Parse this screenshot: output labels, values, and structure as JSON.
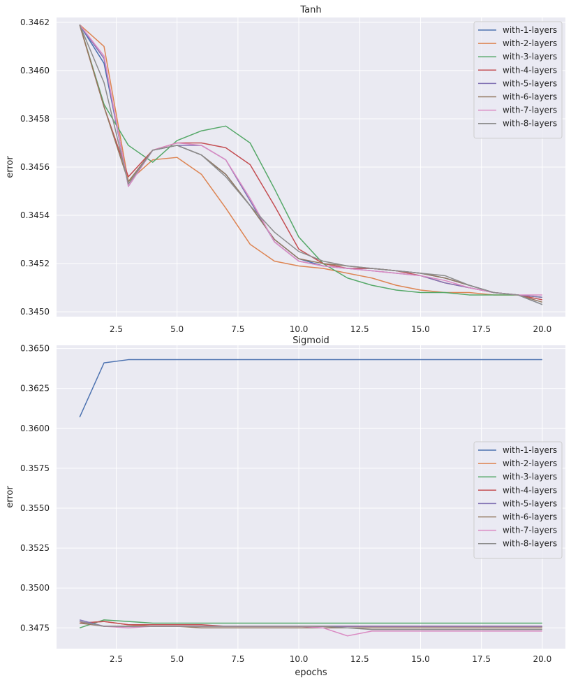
{
  "chart_data": [
    {
      "type": "line",
      "title": "Tanh",
      "xlabel": "",
      "ylabel": "error",
      "xlim": [
        0.05,
        20.95
      ],
      "ylim": [
        0.34498,
        0.34622
      ],
      "xticks": [
        2.5,
        5.0,
        7.5,
        10.0,
        12.5,
        15.0,
        17.5,
        20.0
      ],
      "xtick_labels": [
        "2.5",
        "5.0",
        "7.5",
        "10.0",
        "12.5",
        "15.0",
        "17.5",
        "20.0"
      ],
      "yticks": [
        0.345,
        0.3452,
        0.3454,
        0.3456,
        0.3458,
        0.346,
        0.3462
      ],
      "ytick_labels": [
        "0.3450",
        "0.3452",
        "0.3454",
        "0.3456",
        "0.3458",
        "0.3460",
        "0.3462"
      ],
      "grid": true,
      "legend_position": "top-right",
      "x": [
        1,
        2,
        3,
        4,
        5,
        6,
        7,
        8,
        9,
        10,
        11,
        12,
        13,
        14,
        15,
        16,
        17,
        18,
        19,
        20
      ],
      "series": [
        {
          "name": "with-1-layers",
          "color": "#4c72b0",
          "values": [
            0.34619,
            0.34603,
            0.34553,
            0.34567,
            0.34569,
            0.34565,
            0.34557,
            0.34544,
            0.3453,
            0.34522,
            0.34519,
            0.34518,
            0.34518,
            0.34517,
            0.34516,
            0.34514,
            0.34511,
            0.34508,
            0.34507,
            0.34503
          ]
        },
        {
          "name": "with-2-layers",
          "color": "#dd8452",
          "values": [
            0.34619,
            0.3461,
            0.34554,
            0.34563,
            0.34564,
            0.34557,
            0.34543,
            0.34528,
            0.34521,
            0.34519,
            0.34518,
            0.34516,
            0.34514,
            0.34511,
            0.34509,
            0.34508,
            0.34508,
            0.34507,
            0.34507,
            0.34506
          ]
        },
        {
          "name": "with-3-layers",
          "color": "#55a868",
          "values": [
            0.34619,
            0.34586,
            0.34569,
            0.34562,
            0.34571,
            0.34575,
            0.34577,
            0.3457,
            0.34551,
            0.34531,
            0.3452,
            0.34514,
            0.34511,
            0.34509,
            0.34508,
            0.34508,
            0.34507,
            0.34507,
            0.34507,
            0.34506
          ]
        },
        {
          "name": "with-4-layers",
          "color": "#c44e52",
          "values": [
            0.34619,
            0.34585,
            0.34556,
            0.34567,
            0.3457,
            0.3457,
            0.34568,
            0.34561,
            0.34544,
            0.34526,
            0.3452,
            0.34518,
            0.34518,
            0.34517,
            0.34515,
            0.34512,
            0.3451,
            0.34508,
            0.34507,
            0.34505
          ]
        },
        {
          "name": "with-5-layers",
          "color": "#8172b3",
          "values": [
            0.34619,
            0.34605,
            0.34552,
            0.34567,
            0.34569,
            0.34569,
            0.34563,
            0.34546,
            0.34529,
            0.34521,
            0.34519,
            0.34518,
            0.34517,
            0.34516,
            0.34515,
            0.34512,
            0.3451,
            0.34508,
            0.34507,
            0.34506
          ]
        },
        {
          "name": "with-6-layers",
          "color": "#937860",
          "values": [
            0.34619,
            0.34585,
            0.34554,
            0.34567,
            0.34569,
            0.34565,
            0.34557,
            0.34544,
            0.3453,
            0.34522,
            0.3452,
            0.34519,
            0.34518,
            0.34517,
            0.34516,
            0.34514,
            0.34511,
            0.34508,
            0.34507,
            0.34504
          ]
        },
        {
          "name": "with-7-layers",
          "color": "#da8bc3",
          "values": [
            0.34619,
            0.34606,
            0.34552,
            0.34567,
            0.3457,
            0.34569,
            0.34563,
            0.34547,
            0.34529,
            0.34521,
            0.34519,
            0.34518,
            0.34517,
            0.34516,
            0.34515,
            0.34513,
            0.3451,
            0.34508,
            0.34507,
            0.34507
          ]
        },
        {
          "name": "with-8-layers",
          "color": "#8c8c8c",
          "values": [
            0.34619,
            0.34595,
            0.34553,
            0.34567,
            0.34569,
            0.34565,
            0.34556,
            0.34544,
            0.34533,
            0.34525,
            0.34521,
            0.34519,
            0.34518,
            0.34517,
            0.34516,
            0.34515,
            0.34511,
            0.34508,
            0.34507,
            0.34503
          ]
        }
      ]
    },
    {
      "type": "line",
      "title": "Sigmoid",
      "xlabel": "epochs",
      "ylabel": "error",
      "xlim": [
        0.05,
        20.95
      ],
      "ylim": [
        0.3462,
        0.3652
      ],
      "xticks": [
        2.5,
        5.0,
        7.5,
        10.0,
        12.5,
        15.0,
        17.5,
        20.0
      ],
      "xtick_labels": [
        "2.5",
        "5.0",
        "7.5",
        "10.0",
        "12.5",
        "15.0",
        "17.5",
        "20.0"
      ],
      "yticks": [
        0.3475,
        0.35,
        0.3525,
        0.355,
        0.3575,
        0.36,
        0.3625,
        0.365
      ],
      "ytick_labels": [
        "0.3475",
        "0.3500",
        "0.3525",
        "0.3550",
        "0.3575",
        "0.3600",
        "0.3625",
        "0.3650"
      ],
      "grid": true,
      "legend_position": "center-right",
      "x": [
        1,
        2,
        3,
        4,
        5,
        6,
        7,
        8,
        9,
        10,
        11,
        12,
        13,
        14,
        15,
        16,
        17,
        18,
        19,
        20
      ],
      "series": [
        {
          "name": "with-1-layers",
          "color": "#4c72b0",
          "values": [
            0.3607,
            0.3641,
            0.3643,
            0.3643,
            0.3643,
            0.3643,
            0.3643,
            0.3643,
            0.3643,
            0.3643,
            0.3643,
            0.3643,
            0.3643,
            0.3643,
            0.3643,
            0.3643,
            0.3643,
            0.3643,
            0.3643,
            0.3643
          ]
        },
        {
          "name": "with-2-layers",
          "color": "#dd8452",
          "values": [
            0.3478,
            0.3479,
            0.3477,
            0.3476,
            0.3476,
            0.3476,
            0.3476,
            0.3476,
            0.3476,
            0.3476,
            0.3476,
            0.3476,
            0.3476,
            0.3476,
            0.3476,
            0.3476,
            0.3476,
            0.3476,
            0.3476,
            0.3476
          ]
        },
        {
          "name": "with-3-layers",
          "color": "#55a868",
          "values": [
            0.3475,
            0.348,
            0.3479,
            0.3478,
            0.3478,
            0.3478,
            0.3478,
            0.3478,
            0.3478,
            0.3478,
            0.3478,
            0.3478,
            0.3478,
            0.3478,
            0.3478,
            0.3478,
            0.3478,
            0.3478,
            0.3478,
            0.3478
          ]
        },
        {
          "name": "with-4-layers",
          "color": "#c44e52",
          "values": [
            0.3478,
            0.3479,
            0.3477,
            0.3477,
            0.3477,
            0.3477,
            0.3476,
            0.3476,
            0.3476,
            0.3476,
            0.3476,
            0.3476,
            0.3476,
            0.3476,
            0.3476,
            0.3476,
            0.3476,
            0.3476,
            0.3476,
            0.3476
          ]
        },
        {
          "name": "with-5-layers",
          "color": "#8172b3",
          "values": [
            0.348,
            0.3476,
            0.3476,
            0.3476,
            0.3476,
            0.3476,
            0.3476,
            0.3476,
            0.3476,
            0.3476,
            0.3476,
            0.3476,
            0.3476,
            0.3476,
            0.3476,
            0.3476,
            0.3476,
            0.3476,
            0.3476,
            0.3476
          ]
        },
        {
          "name": "with-6-layers",
          "color": "#937860",
          "values": [
            0.3478,
            0.3476,
            0.3476,
            0.3476,
            0.3476,
            0.3475,
            0.3475,
            0.3475,
            0.3475,
            0.3475,
            0.3475,
            0.3475,
            0.3475,
            0.3475,
            0.3475,
            0.3475,
            0.3475,
            0.3475,
            0.3475,
            0.3475
          ]
        },
        {
          "name": "with-7-layers",
          "color": "#da8bc3",
          "values": [
            0.3479,
            0.3476,
            0.3475,
            0.3476,
            0.3476,
            0.3476,
            0.3476,
            0.3476,
            0.3476,
            0.3476,
            0.3475,
            0.347,
            0.3473,
            0.3473,
            0.3473,
            0.3473,
            0.3473,
            0.3473,
            0.3473,
            0.3473
          ]
        },
        {
          "name": "with-8-layers",
          "color": "#8c8c8c",
          "values": [
            0.3479,
            0.3476,
            0.3476,
            0.3476,
            0.3476,
            0.3476,
            0.3476,
            0.3476,
            0.3476,
            0.3476,
            0.3476,
            0.3475,
            0.3474,
            0.3474,
            0.3474,
            0.3474,
            0.3474,
            0.3474,
            0.3474,
            0.3474
          ]
        }
      ]
    }
  ],
  "colors": {
    "axes_background": "#eaeaf2",
    "grid": "#ffffff",
    "text": "#262626",
    "legend_border": "#cccccc"
  }
}
